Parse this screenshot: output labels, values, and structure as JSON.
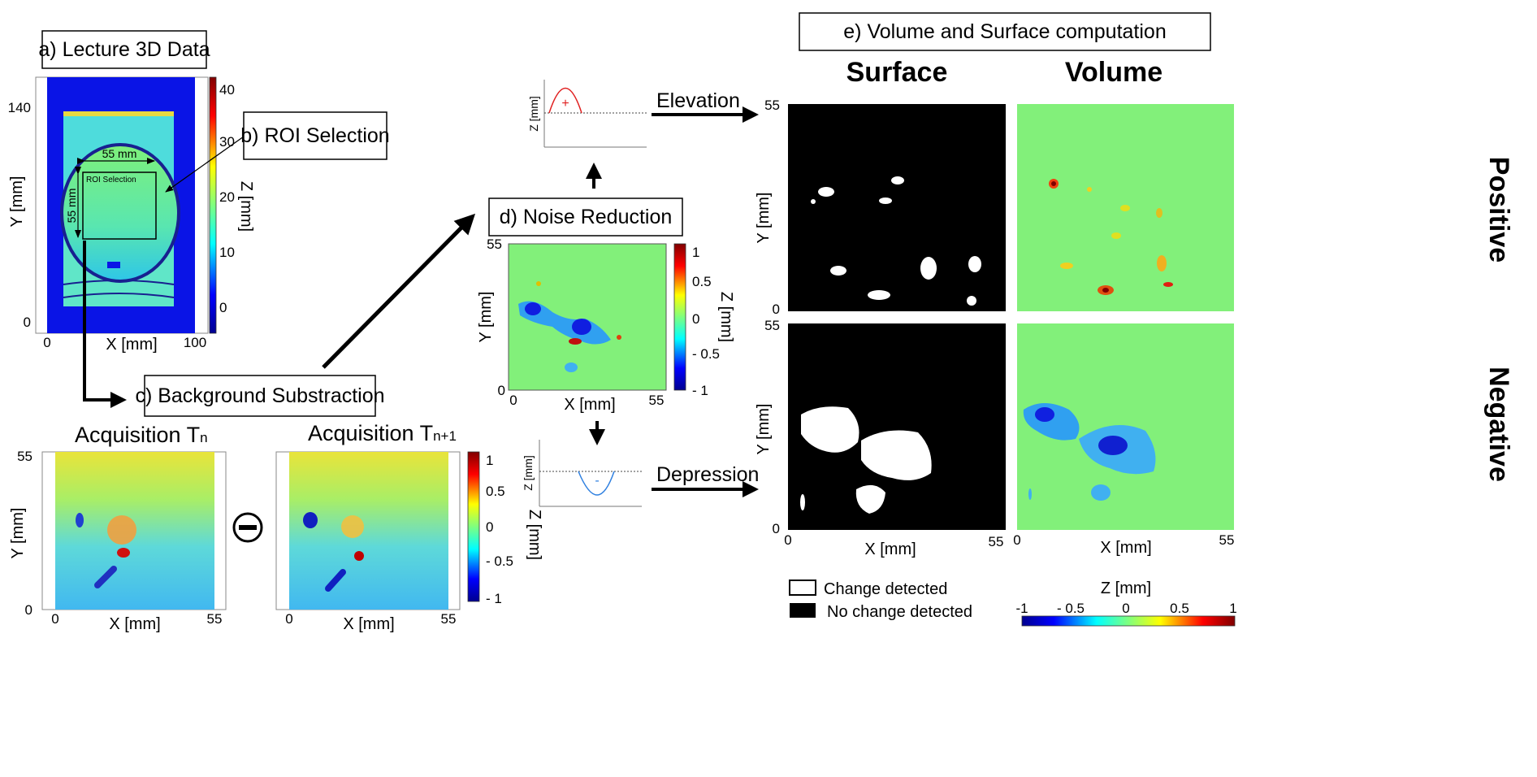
{
  "steps": {
    "a": "a) Lecture 3D Data",
    "b": "b) ROI Selection",
    "c": "c) Background Substraction",
    "d": "d) Noise Reduction",
    "e": "e) Volume and Surface computation"
  },
  "panel_a": {
    "xlabel": "X [mm]",
    "ylabel": "Y [mm]",
    "x_ticks": [
      "0",
      "100"
    ],
    "y_ticks": [
      "140",
      "0"
    ],
    "roi_text": "ROI Selection",
    "width_label": "55 mm",
    "height_label": "55 mm",
    "colorbar": {
      "label": "Z [mm]",
      "ticks": [
        "40",
        "30",
        "20",
        "10",
        "0"
      ]
    }
  },
  "panel_c": {
    "left_title": "Acquisition T",
    "left_sub": "n",
    "right_title": "Acquisition T",
    "right_sub": "n+1",
    "operator": "minus",
    "xlabel": "X [mm]",
    "ylabel": "Y [mm]",
    "x_ticks": [
      "0",
      "55"
    ],
    "y_ticks": [
      "55",
      "0"
    ],
    "colorbar": {
      "label": "Z [mm]",
      "ticks": [
        "1",
        "0.5",
        "0",
        "- 0.5",
        "- 1"
      ]
    }
  },
  "panel_d": {
    "xlabel": "X [mm]",
    "ylabel": "Y [mm]",
    "x_ticks": [
      "0",
      "55"
    ],
    "y_ticks": [
      "55",
      "0"
    ],
    "colorbar": {
      "label": "Z [mm]",
      "ticks": [
        "1",
        "0.5",
        "0",
        "- 0.5",
        "- 1"
      ]
    },
    "elevation_label": "Elevation",
    "depression_label": "Depression",
    "small_plot_ylabel": "Z [mm]",
    "plus": "+",
    "minus": "-"
  },
  "panel_e": {
    "col_surface": "Surface",
    "col_volume": "Volume",
    "row_positive": "Positive",
    "row_negative": "Negative",
    "xlabel": "X [mm]",
    "ylabel": "Y [mm]",
    "x_ticks": [
      "0",
      "55"
    ],
    "y_ticks": [
      "55",
      "0"
    ],
    "legend_change": "Change detected",
    "legend_nochange": "No change detected",
    "colorbar": {
      "label": "Z [mm]",
      "ticks": [
        "-1",
        "- 0.5",
        "0",
        "0.5",
        "1"
      ]
    }
  },
  "colors": {
    "background_green": "#82f07a",
    "dark_blue": "#0a14e6",
    "jet_max": "#8b0000",
    "jet_min": "#00008f",
    "arrow": "#000000"
  }
}
